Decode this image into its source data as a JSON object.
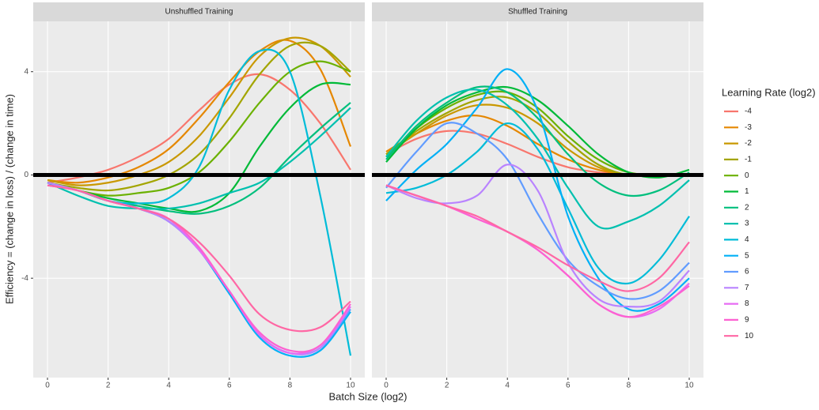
{
  "chart_data": {
    "type": "line",
    "x_label": "Batch Size (log2)",
    "y_label": "Efficiency = (change in loss) / (change in time)",
    "legend_title": "Learning Rate (log2)",
    "x": [
      0,
      1,
      2,
      3,
      4,
      5,
      6,
      7,
      8,
      9,
      10
    ],
    "xlim": [
      -0.47,
      10.47
    ],
    "xticks": [
      0,
      2,
      4,
      6,
      8,
      10
    ],
    "ylim": [
      -7.85,
      5.95
    ],
    "yticks": [
      -4,
      0,
      4
    ],
    "grid": true,
    "hline": 0,
    "series": [
      {
        "name": "-4",
        "color": "#F8766D"
      },
      {
        "name": "-3",
        "color": "#E58700"
      },
      {
        "name": "-2",
        "color": "#C99800"
      },
      {
        "name": "-1",
        "color": "#A3A500"
      },
      {
        "name": "0",
        "color": "#6BB100"
      },
      {
        "name": "1",
        "color": "#00BA38"
      },
      {
        "name": "2",
        "color": "#00BF7D"
      },
      {
        "name": "3",
        "color": "#00C0AF"
      },
      {
        "name": "4",
        "color": "#00BCD8"
      },
      {
        "name": "5",
        "color": "#00B0F6"
      },
      {
        "name": "6",
        "color": "#619CFF"
      },
      {
        "name": "7",
        "color": "#B983FF"
      },
      {
        "name": "8",
        "color": "#E76BF3"
      },
      {
        "name": "9",
        "color": "#FD61D1"
      },
      {
        "name": "10",
        "color": "#FF67A4"
      }
    ],
    "facets": [
      {
        "title": "Unshuffled Training",
        "values": [
          [
            -0.3,
            -0.1,
            0.2,
            0.7,
            1.4,
            2.5,
            3.5,
            3.9,
            3.3,
            2.0,
            0.2
          ],
          [
            -0.2,
            -0.3,
            -0.1,
            0.3,
            1.0,
            2.2,
            3.6,
            4.8,
            5.2,
            4.1,
            1.1
          ],
          [
            -0.2,
            -0.4,
            -0.3,
            0.0,
            0.5,
            1.5,
            3.0,
            4.6,
            5.3,
            5.0,
            3.8
          ],
          [
            -0.3,
            -0.5,
            -0.6,
            -0.4,
            0.0,
            0.8,
            2.2,
            3.9,
            5.0,
            5.0,
            4.0
          ],
          [
            -0.3,
            -0.6,
            -0.8,
            -0.7,
            -0.5,
            0.1,
            1.3,
            2.8,
            4.0,
            4.4,
            4.0
          ],
          [
            -0.3,
            -0.6,
            -0.9,
            -1.1,
            -1.3,
            -1.4,
            -0.7,
            1.1,
            2.6,
            3.5,
            3.5
          ],
          [
            -0.3,
            -0.6,
            -1.0,
            -1.2,
            -1.4,
            -1.5,
            -1.2,
            -0.5,
            0.7,
            1.8,
            2.8
          ],
          [
            -0.3,
            -0.8,
            -1.2,
            -1.3,
            -1.3,
            -1.1,
            -0.7,
            -0.3,
            0.5,
            1.5,
            2.6
          ],
          [
            -0.3,
            -0.6,
            -1.0,
            -1.1,
            -0.9,
            0.3,
            3.3,
            4.8,
            4.0,
            -0.8,
            -7.0
          ],
          [
            -0.3,
            -0.6,
            -1.0,
            -1.3,
            -1.8,
            -2.9,
            -4.6,
            -6.3,
            -7.0,
            -6.8,
            -5.3
          ],
          [
            -0.3,
            -0.6,
            -1.0,
            -1.3,
            -1.8,
            -2.9,
            -4.5,
            -6.2,
            -6.9,
            -6.7,
            -5.2
          ],
          [
            -0.3,
            -0.6,
            -1.0,
            -1.3,
            -1.8,
            -2.9,
            -4.5,
            -6.2,
            -6.9,
            -6.7,
            -5.1
          ],
          [
            -0.4,
            -0.6,
            -1.0,
            -1.3,
            -1.7,
            -2.9,
            -4.5,
            -6.2,
            -6.9,
            -6.6,
            -5.1
          ],
          [
            -0.4,
            -0.6,
            -1.0,
            -1.3,
            -1.7,
            -2.8,
            -4.5,
            -6.1,
            -6.8,
            -6.6,
            -5.0
          ],
          [
            -0.4,
            -0.6,
            -1.0,
            -1.3,
            -1.7,
            -2.6,
            -3.9,
            -5.4,
            -6.0,
            -5.9,
            -4.9
          ]
        ]
      },
      {
        "title": "Shuffled Training",
        "values": [
          [
            0.8,
            1.4,
            1.7,
            1.6,
            1.2,
            0.7,
            0.3,
            0.1,
            0.0,
            0.0,
            0.0
          ],
          [
            0.9,
            1.6,
            2.1,
            2.3,
            1.9,
            1.2,
            0.6,
            0.2,
            0.0,
            0.0,
            0.0
          ],
          [
            0.8,
            1.6,
            2.3,
            2.7,
            2.6,
            2.0,
            1.0,
            0.3,
            0.0,
            0.0,
            0.0
          ],
          [
            0.8,
            1.7,
            2.4,
            2.9,
            3.0,
            2.4,
            1.3,
            0.4,
            0.0,
            0.0,
            0.0
          ],
          [
            0.7,
            1.8,
            2.6,
            3.1,
            3.2,
            2.6,
            1.5,
            0.6,
            0.1,
            0.0,
            0.0
          ],
          [
            0.5,
            1.8,
            2.7,
            3.2,
            3.4,
            2.9,
            1.9,
            0.8,
            0.1,
            -0.1,
            0.2
          ],
          [
            0.6,
            1.9,
            2.8,
            3.4,
            3.2,
            2.2,
            0.8,
            -0.3,
            -0.8,
            -0.6,
            0.1
          ],
          [
            0.7,
            2.1,
            3.0,
            3.3,
            2.7,
            1.4,
            -0.5,
            -2.0,
            -1.8,
            -1.2,
            -0.2
          ],
          [
            -0.7,
            -0.5,
            0.0,
            0.9,
            2.0,
            1.0,
            -1.3,
            -3.6,
            -4.2,
            -3.3,
            -1.6
          ],
          [
            -1.0,
            0.2,
            1.2,
            2.6,
            4.1,
            2.5,
            -1.6,
            -4.0,
            -5.2,
            -5.0,
            -4.0
          ],
          [
            -0.5,
            0.9,
            2.0,
            1.6,
            0.6,
            -1.5,
            -3.3,
            -4.3,
            -4.8,
            -4.5,
            -3.4
          ],
          [
            -0.4,
            -0.9,
            -1.1,
            -0.8,
            0.4,
            -0.6,
            -3.4,
            -4.8,
            -5.1,
            -4.9,
            -3.7
          ],
          [
            -0.4,
            -0.8,
            -1.2,
            -1.7,
            -2.2,
            -2.9,
            -3.9,
            -5.0,
            -5.5,
            -5.2,
            -4.2
          ],
          [
            -0.4,
            -0.8,
            -1.2,
            -1.7,
            -2.2,
            -2.9,
            -3.9,
            -5.0,
            -5.5,
            -5.1,
            -4.3
          ],
          [
            -0.4,
            -0.8,
            -1.2,
            -1.6,
            -2.2,
            -2.8,
            -3.5,
            -4.1,
            -4.5,
            -4.0,
            -2.6
          ]
        ]
      }
    ]
  }
}
